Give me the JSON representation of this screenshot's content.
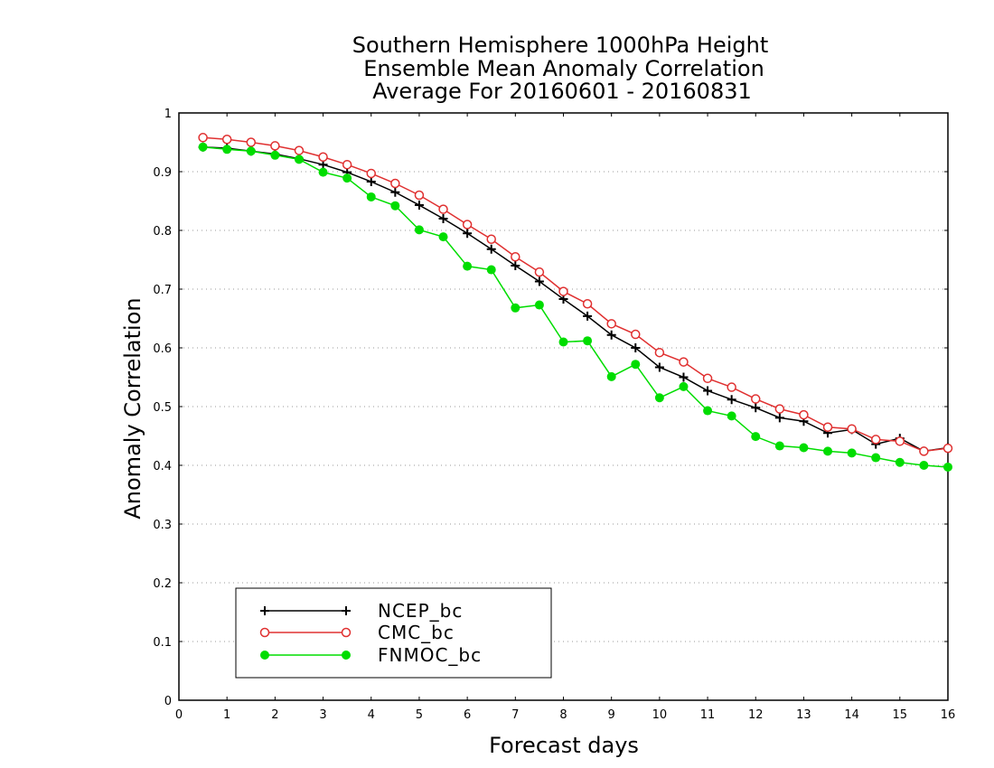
{
  "chart_data": {
    "type": "line",
    "title_lines": [
      "Southern Hemisphere 1000hPa Height",
      "Ensemble Mean Anomaly Correlation",
      "Average For 20160601 - 20160831"
    ],
    "xlabel": "Forecast days",
    "ylabel": "Anomaly Correlation",
    "xlim": [
      0,
      16
    ],
    "ylim": [
      0,
      1
    ],
    "x_ticks": [
      "0",
      "1",
      "2",
      "3",
      "4",
      "5",
      "6",
      "7",
      "8",
      "9",
      "10",
      "11",
      "12",
      "13",
      "14",
      "15",
      "16"
    ],
    "y_ticks": [
      "0",
      "0.1",
      "0.2",
      "0.3",
      "0.4",
      "0.5",
      "0.6",
      "0.7",
      "0.8",
      "0.9",
      "1"
    ],
    "grid": "horizontal dotted",
    "legend_position": "bottom-left",
    "x": [
      0.5,
      1,
      1.5,
      2,
      2.5,
      3,
      3.5,
      4,
      4.5,
      5,
      5.5,
      6,
      6.5,
      7,
      7.5,
      8,
      8.5,
      9,
      9.5,
      10,
      10.5,
      11,
      11.5,
      12,
      12.5,
      13,
      13.5,
      14,
      14.5,
      15,
      15.5,
      16
    ],
    "series": [
      {
        "name": "NCEP_bc",
        "color": "#000000",
        "marker": "plus",
        "values": [
          0.942,
          0.94,
          0.935,
          0.93,
          0.922,
          0.912,
          0.899,
          0.883,
          0.865,
          0.843,
          0.82,
          0.795,
          0.768,
          0.74,
          0.713,
          0.683,
          0.654,
          0.622,
          0.6,
          0.567,
          0.55,
          0.527,
          0.512,
          0.498,
          0.481,
          0.475,
          0.455,
          0.461,
          0.436,
          0.446,
          0.424,
          0.43
        ]
      },
      {
        "name": "CMC_bc",
        "color": "#e03030",
        "marker": "open-circle",
        "values": [
          0.958,
          0.955,
          0.95,
          0.944,
          0.936,
          0.925,
          0.912,
          0.897,
          0.88,
          0.86,
          0.836,
          0.81,
          0.785,
          0.755,
          0.729,
          0.696,
          0.675,
          0.641,
          0.623,
          0.592,
          0.576,
          0.548,
          0.533,
          0.513,
          0.496,
          0.486,
          0.465,
          0.462,
          0.444,
          0.441,
          0.424,
          0.429
        ]
      },
      {
        "name": "FNMOC_bc",
        "color": "#00dd00",
        "marker": "filled-circle",
        "values": [
          0.942,
          0.938,
          0.935,
          0.928,
          0.921,
          0.899,
          0.889,
          0.857,
          0.842,
          0.801,
          0.789,
          0.739,
          0.733,
          0.668,
          0.673,
          0.61,
          0.612,
          0.551,
          0.572,
          0.515,
          0.534,
          0.493,
          0.484,
          0.449,
          0.433,
          0.43,
          0.424,
          0.421,
          0.413,
          0.405,
          0.4,
          0.397
        ]
      }
    ]
  }
}
